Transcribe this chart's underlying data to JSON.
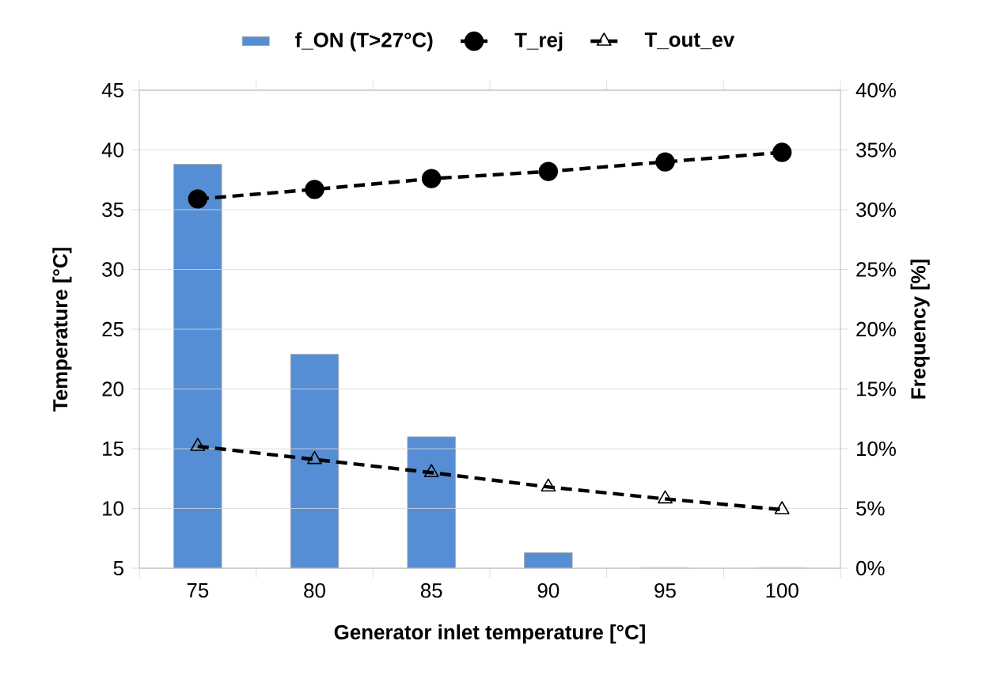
{
  "chart_data": {
    "type": "bar",
    "xlabel": "Generator inlet temperature [°C]",
    "ylabel": "Temperature [°C]",
    "y2label": "Frequency [%]",
    "categories": [
      "75",
      "80",
      "85",
      "90",
      "95",
      "100"
    ],
    "series": [
      {
        "name": "f_ON (T>27°C)",
        "axis": "y2",
        "color": "#558ed5",
        "values": [
          33.8,
          17.9,
          11.0,
          1.3,
          0,
          0
        ]
      },
      {
        "name": "T_rej",
        "type": "line",
        "color": "#000000",
        "marker": "circle",
        "line_style": "dashed",
        "values": [
          35.9,
          36.7,
          37.6,
          38.2,
          39.0,
          39.8
        ]
      },
      {
        "name": "T_out_ev",
        "type": "line",
        "color": "#000000",
        "marker": "triangle",
        "line_style": "dashed",
        "values": [
          15.2,
          14.1,
          13.0,
          11.8,
          10.8,
          9.9
        ]
      }
    ],
    "ylim": [
      5,
      45
    ],
    "yticks": [
      5,
      10,
      15,
      20,
      25,
      30,
      35,
      40,
      45
    ],
    "y2lim": [
      0,
      40
    ],
    "y2ticks": [
      {
        "value": 0,
        "label": "0%"
      },
      {
        "value": 5,
        "label": "5%"
      },
      {
        "value": 10,
        "label": "10%"
      },
      {
        "value": 15,
        "label": "15%"
      },
      {
        "value": 20,
        "label": "20%"
      },
      {
        "value": 25,
        "label": "25%"
      },
      {
        "value": 30,
        "label": "30%"
      },
      {
        "value": 35,
        "label": "35%"
      },
      {
        "value": 40,
        "label": "40%"
      }
    ],
    "grid": "y",
    "legend": "top"
  }
}
